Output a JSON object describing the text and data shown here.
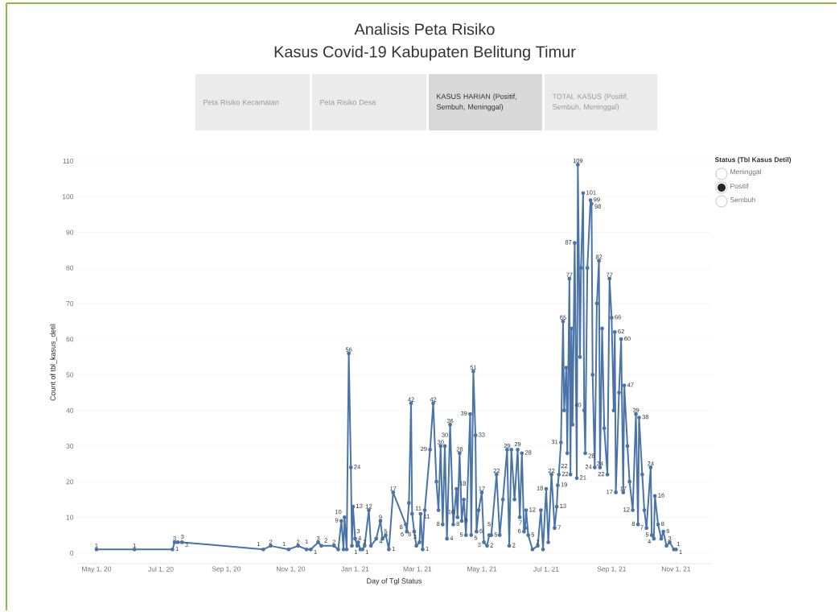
{
  "chart_data": {
    "type": "line",
    "title": "Analisis Peta Risiko",
    "subtitle": "Kasus Covid-19 Kabupaten Belitung Timur",
    "xlabel": "Day of Tgl Status",
    "ylabel": "Count of tbl_kasus_detil",
    "annotations": [
      "Peta Risiko Kecamatan",
      "Peta Risiko Desa",
      "KASUS HARIAN (Positif, Sembuh, Meninggal)",
      "TOTAL KASUS (Positif, Sembuh, Meninggal)",
      "Status (Tbl Kasus Detil)",
      "Meninggal",
      "Positif",
      "Sembuh"
    ],
    "color": "#4a74a8",
    "marker": "circle",
    "line_style": "solid",
    "grid": "y",
    "xlim": [
      "2020-04-12",
      "2021-12-05"
    ],
    "ylim": [
      -3,
      110
    ],
    "xticks": [
      {
        "value": "2020-05-01",
        "label": "May 1, 20"
      },
      {
        "value": "2020-07-01",
        "label": "Jul 1, 20"
      },
      {
        "value": "2020-09-01",
        "label": "Sep 1, 20"
      },
      {
        "value": "2020-11-01",
        "label": "Nov 1, 20"
      },
      {
        "value": "2021-01-01",
        "label": "Jan 1, 21"
      },
      {
        "value": "2021-03-01",
        "label": "Mar 1, 21"
      },
      {
        "value": "2021-05-01",
        "label": "May 1, 21"
      },
      {
        "value": "2021-07-01",
        "label": "Jul 1, 21"
      },
      {
        "value": "2021-09-01",
        "label": "Sep 1, 21"
      },
      {
        "value": "2021-11-01",
        "label": "Nov 1, 21"
      }
    ],
    "yticks": [
      0,
      10,
      20,
      30,
      40,
      50,
      60,
      70,
      80,
      90,
      100,
      110
    ],
    "x": [
      "2020-05-01",
      "2020-06-06",
      "2020-07-12",
      "2020-07-14",
      "2020-07-17",
      "2020-07-21",
      "2020-10-06",
      "2020-10-13",
      "2020-10-30",
      "2020-11-08",
      "2020-11-16",
      "2020-11-20",
      "2020-11-27",
      "2020-11-30",
      "2020-12-12",
      "2020-12-16",
      "2020-12-19",
      "2020-12-21",
      "2020-12-22",
      "2020-12-24",
      "2020-12-26",
      "2020-12-28",
      "2020-12-29",
      "2020-12-30",
      "2021-01-01",
      "2021-01-03",
      "2021-01-04",
      "2021-01-06",
      "2021-01-08",
      "2021-01-10",
      "2021-01-14",
      "2021-01-16",
      "2021-01-21",
      "2021-01-25",
      "2021-01-27",
      "2021-01-30",
      "2021-02-02",
      "2021-02-06",
      "2021-02-18",
      "2021-02-19",
      "2021-02-21",
      "2021-02-23",
      "2021-02-24",
      "2021-02-26",
      "2021-02-28",
      "2021-03-03",
      "2021-03-04",
      "2021-03-06",
      "2021-03-08",
      "2021-03-13",
      "2021-03-16",
      "2021-03-19",
      "2021-03-21",
      "2021-03-23",
      "2021-03-25",
      "2021-03-27",
      "2021-03-29",
      "2021-04-01",
      "2021-04-04",
      "2021-04-07",
      "2021-04-08",
      "2021-04-10",
      "2021-04-12",
      "2021-04-14",
      "2021-04-16",
      "2021-04-20",
      "2021-04-21",
      "2021-04-23",
      "2021-04-25",
      "2021-04-26",
      "2021-04-28",
      "2021-05-01",
      "2021-05-03",
      "2021-05-06",
      "2021-05-08",
      "2021-05-10",
      "2021-05-15",
      "2021-05-18",
      "2021-05-21",
      "2021-05-25",
      "2021-05-27",
      "2021-05-29",
      "2021-06-01",
      "2021-06-04",
      "2021-06-06",
      "2021-06-08",
      "2021-06-10",
      "2021-06-11",
      "2021-06-12",
      "2021-06-14",
      "2021-06-18",
      "2021-06-23",
      "2021-06-26",
      "2021-06-28",
      "2021-07-01",
      "2021-07-03",
      "2021-07-06",
      "2021-07-09",
      "2021-07-11",
      "2021-07-12",
      "2021-07-13",
      "2021-07-15",
      "2021-07-17",
      "2021-07-18",
      "2021-07-20",
      "2021-07-21",
      "2021-07-23",
      "2021-07-24",
      "2021-07-25",
      "2021-07-26",
      "2021-07-28",
      "2021-07-30",
      "2021-07-31",
      "2021-08-02",
      "2021-08-03",
      "2021-08-05",
      "2021-08-06",
      "2021-08-07",
      "2021-08-09",
      "2021-08-12",
      "2021-08-13",
      "2021-08-14",
      "2021-08-16",
      "2021-08-18",
      "2021-08-20",
      "2021-08-21",
      "2021-08-23",
      "2021-08-25",
      "2021-08-28",
      "2021-08-30",
      "2021-09-01",
      "2021-09-03",
      "2021-09-04",
      "2021-09-05",
      "2021-09-08",
      "2021-09-10",
      "2021-09-12",
      "2021-09-13",
      "2021-09-16",
      "2021-09-18",
      "2021-09-21",
      "2021-09-24",
      "2021-09-26",
      "2021-09-27",
      "2021-09-30",
      "2021-10-02",
      "2021-10-04",
      "2021-10-08",
      "2021-10-09",
      "2021-10-11",
      "2021-10-12",
      "2021-10-15",
      "2021-10-18",
      "2021-10-20",
      "2021-10-23",
      "2021-10-26",
      "2021-10-30",
      "2021-11-01"
    ],
    "values": [
      1,
      1,
      1,
      3,
      3,
      3,
      1,
      2,
      1,
      2,
      1,
      1,
      3,
      2,
      2,
      1,
      9,
      1,
      10,
      1,
      56,
      24,
      2,
      13,
      4,
      2,
      3,
      1,
      1,
      2,
      12,
      2,
      4,
      9,
      4,
      5,
      1,
      17,
      8,
      6,
      14,
      42,
      11,
      6,
      2,
      3,
      11,
      1,
      12,
      29,
      42,
      20,
      12,
      30,
      8,
      30,
      4,
      36,
      8,
      18,
      10,
      28,
      9,
      15,
      5,
      39,
      5,
      51,
      33,
      6,
      12,
      17,
      3,
      2,
      5,
      5,
      22,
      5,
      15,
      29,
      2,
      29,
      15,
      29,
      10,
      28,
      6,
      7,
      12,
      5,
      1,
      2,
      12,
      1,
      18,
      3,
      22,
      7,
      13,
      19,
      22,
      31,
      65,
      40,
      52,
      28,
      77,
      22,
      63,
      36,
      87,
      21,
      109,
      55,
      80,
      101,
      40,
      28,
      80,
      99,
      98,
      50,
      24,
      70,
      82,
      24,
      63,
      35,
      22,
      77,
      66,
      40,
      62,
      17,
      45,
      60,
      17,
      47,
      30,
      20,
      12,
      39,
      8,
      38,
      22,
      12,
      7,
      24,
      5,
      4,
      16,
      8,
      4,
      6,
      2,
      3,
      1,
      1
    ],
    "value_labels": [
      "1",
      "1",
      "1",
      "3",
      "3",
      "3",
      "1",
      "2",
      "1",
      "2",
      "1",
      "1",
      "3",
      "2",
      "2",
      null,
      "9",
      null,
      "10",
      null,
      "56",
      "24",
      null,
      "13",
      "4",
      null,
      "3",
      "1",
      "1",
      "2",
      "12",
      null,
      "4",
      "9",
      null,
      "5",
      "1",
      "17",
      "8",
      "6",
      null,
      "42",
      "11",
      "6",
      null,
      "3",
      "11",
      "1",
      null,
      "29",
      "42",
      null,
      null,
      "30",
      "8",
      "30",
      "4",
      "36",
      "8",
      "18",
      "10",
      "28",
      "9",
      null,
      "5",
      "39",
      "5",
      "51",
      "33",
      "6",
      null,
      "17",
      "3",
      "2",
      "5",
      "5",
      "22",
      null,
      null,
      "29",
      "2",
      "29",
      null,
      null,
      null,
      "28",
      "6",
      "7",
      "12",
      "5",
      null,
      "2",
      null,
      null,
      "18",
      null,
      "22",
      "7",
      "13",
      "19",
      "22",
      "31",
      "65",
      null,
      null,
      null,
      "77",
      "22",
      null,
      null,
      "87",
      "21",
      "109",
      null,
      null,
      "101",
      "40",
      "28",
      null,
      "99",
      "98",
      null,
      "24",
      null,
      "82",
      "24",
      null,
      null,
      "22",
      "77",
      "66",
      null,
      "62",
      "17",
      null,
      "60",
      "17",
      "47",
      null,
      null,
      "12",
      "39",
      "8",
      "38",
      null,
      null,
      "7",
      "24",
      "5",
      "4",
      "16",
      "8",
      null,
      "6",
      null,
      "3",
      "1",
      "1"
    ]
  }
}
